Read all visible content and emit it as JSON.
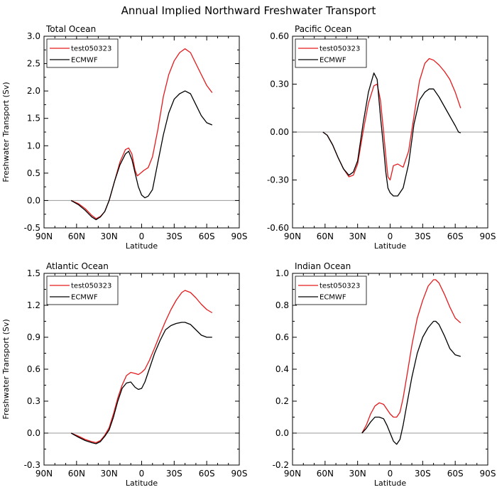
{
  "figure_title": "Annual Implied Northward Freshwater Transport",
  "colors": {
    "series1": "#e41a1c",
    "series2": "#000000",
    "zero_line": "#999999",
    "axis": "#000000"
  },
  "chart_data": [
    {
      "type": "line",
      "title": "Total Ocean",
      "xlabel": "Latitude",
      "ylabel": "Freshwater Transport (Sv)",
      "xlim": [
        -90,
        90
      ],
      "xticks": [
        "90N",
        "60N",
        "30N",
        "0",
        "30S",
        "60S",
        "90S"
      ],
      "ylim": [
        -0.5,
        3.0
      ],
      "yticks": [
        "-0.5",
        "0.0",
        "0.5",
        "1.0",
        "1.5",
        "2.0",
        "2.5",
        "3.0"
      ],
      "series": [
        {
          "name": "test050323",
          "x": [
            -65,
            -58,
            -52,
            -46,
            -42,
            -38,
            -34,
            -30,
            -25,
            -20,
            -15,
            -12,
            -9,
            -6,
            -4,
            -1,
            2,
            6,
            10,
            15,
            20,
            25,
            30,
            35,
            40,
            45,
            50,
            55,
            60,
            65
          ],
          "y": [
            0.0,
            -0.06,
            -0.15,
            -0.27,
            -0.33,
            -0.29,
            -0.2,
            0.0,
            0.35,
            0.7,
            0.93,
            0.96,
            0.85,
            0.55,
            0.45,
            0.5,
            0.55,
            0.6,
            0.8,
            1.3,
            1.9,
            2.3,
            2.55,
            2.7,
            2.77,
            2.7,
            2.5,
            2.3,
            2.1,
            1.97
          ]
        },
        {
          "name": "ECMWF",
          "x": [
            -65,
            -58,
            -52,
            -46,
            -42,
            -38,
            -34,
            -30,
            -25,
            -20,
            -15,
            -12,
            -9,
            -6,
            -3,
            0,
            3,
            6,
            10,
            15,
            20,
            25,
            30,
            35,
            40,
            45,
            50,
            55,
            60,
            65
          ],
          "y": [
            0.0,
            -0.08,
            -0.18,
            -0.3,
            -0.35,
            -0.3,
            -0.2,
            0.0,
            0.35,
            0.65,
            0.85,
            0.9,
            0.75,
            0.5,
            0.25,
            0.1,
            0.05,
            0.08,
            0.2,
            0.7,
            1.2,
            1.6,
            1.85,
            1.95,
            2.0,
            1.95,
            1.75,
            1.55,
            1.42,
            1.38
          ]
        }
      ]
    },
    {
      "type": "line",
      "title": "Pacific Ocean",
      "xlabel": "Latitude",
      "ylabel": "",
      "xlim": [
        -90,
        90
      ],
      "xticks": [
        "90N",
        "60N",
        "30N",
        "0",
        "30S",
        "60S",
        "90S"
      ],
      "ylim": [
        -0.6,
        0.6
      ],
      "yticks": [
        "-0.60",
        "-0.30",
        "0.00",
        "0.30",
        "0.60"
      ],
      "series": [
        {
          "name": "test050323",
          "x": [
            -62,
            -58,
            -53,
            -48,
            -43,
            -38,
            -34,
            -30,
            -25,
            -20,
            -15,
            -12,
            -9,
            -6,
            -4,
            -2,
            0,
            3,
            7,
            12,
            17,
            22,
            27,
            32,
            36,
            40,
            45,
            50,
            55,
            60,
            65
          ],
          "y": [
            0.0,
            -0.02,
            -0.08,
            -0.16,
            -0.23,
            -0.28,
            -0.27,
            -0.2,
            0.0,
            0.18,
            0.29,
            0.3,
            0.2,
            0.0,
            -0.15,
            -0.28,
            -0.3,
            -0.21,
            -0.2,
            -0.22,
            -0.12,
            0.1,
            0.32,
            0.43,
            0.46,
            0.45,
            0.42,
            0.38,
            0.33,
            0.25,
            0.15
          ]
        },
        {
          "name": "ECMWF",
          "x": [
            -62,
            -58,
            -53,
            -48,
            -43,
            -38,
            -34,
            -30,
            -25,
            -20,
            -15,
            -12,
            -9,
            -6,
            -4,
            -2,
            0,
            3,
            7,
            12,
            17,
            22,
            27,
            32,
            36,
            40,
            45,
            50,
            55,
            60,
            63,
            65
          ],
          "y": [
            0.0,
            -0.02,
            -0.08,
            -0.16,
            -0.23,
            -0.27,
            -0.25,
            -0.18,
            0.05,
            0.25,
            0.37,
            0.33,
            0.1,
            -0.1,
            -0.25,
            -0.35,
            -0.38,
            -0.4,
            -0.4,
            -0.35,
            -0.2,
            0.05,
            0.2,
            0.25,
            0.27,
            0.27,
            0.22,
            0.16,
            0.1,
            0.04,
            0.0,
            -0.005
          ]
        }
      ]
    },
    {
      "type": "line",
      "title": "Atlantic Ocean",
      "xlabel": "Latitude",
      "ylabel": "Freshwater Transport (Sv)",
      "xlim": [
        -90,
        90
      ],
      "xticks": [
        "90N",
        "60N",
        "30N",
        "0",
        "30S",
        "60S",
        "90S"
      ],
      "ylim": [
        -0.3,
        1.5
      ],
      "yticks": [
        "-0.3",
        "0.0",
        "0.3",
        "0.6",
        "0.9",
        "1.2",
        "1.5"
      ],
      "series": [
        {
          "name": "test050323",
          "x": [
            -65,
            -58,
            -52,
            -46,
            -42,
            -38,
            -34,
            -30,
            -26,
            -22,
            -18,
            -14,
            -10,
            -6,
            -3,
            0,
            3,
            7,
            12,
            17,
            22,
            27,
            32,
            37,
            40,
            45,
            50,
            55,
            60,
            65
          ],
          "y": [
            0.0,
            -0.03,
            -0.06,
            -0.08,
            -0.09,
            -0.07,
            -0.02,
            0.05,
            0.18,
            0.33,
            0.45,
            0.54,
            0.57,
            0.56,
            0.55,
            0.57,
            0.6,
            0.68,
            0.8,
            0.93,
            1.05,
            1.16,
            1.25,
            1.32,
            1.34,
            1.32,
            1.27,
            1.21,
            1.16,
            1.13
          ]
        },
        {
          "name": "ECMWF",
          "x": [
            -65,
            -58,
            -52,
            -46,
            -42,
            -38,
            -34,
            -30,
            -26,
            -22,
            -18,
            -14,
            -10,
            -6,
            -3,
            0,
            3,
            7,
            12,
            17,
            22,
            27,
            32,
            37,
            40,
            45,
            50,
            55,
            60,
            65
          ],
          "y": [
            0.0,
            -0.04,
            -0.07,
            -0.09,
            -0.1,
            -0.08,
            -0.03,
            0.03,
            0.15,
            0.3,
            0.42,
            0.47,
            0.48,
            0.43,
            0.41,
            0.42,
            0.48,
            0.6,
            0.75,
            0.87,
            0.97,
            1.01,
            1.03,
            1.04,
            1.04,
            1.02,
            0.97,
            0.92,
            0.9,
            0.9
          ]
        }
      ]
    },
    {
      "type": "line",
      "title": "Indian Ocean",
      "xlabel": "Latitude",
      "ylabel": "",
      "xlim": [
        -90,
        90
      ],
      "xticks": [
        "90N",
        "60N",
        "30N",
        "0",
        "30S",
        "60S",
        "90S"
      ],
      "ylim": [
        -0.2,
        1.0
      ],
      "yticks": [
        "-0.2",
        "0.0",
        "0.2",
        "0.4",
        "0.6",
        "0.8",
        "1.0"
      ],
      "series": [
        {
          "name": "test050323",
          "x": [
            -26,
            -22,
            -18,
            -14,
            -10,
            -6,
            -3,
            0,
            3,
            6,
            9,
            12,
            16,
            20,
            25,
            30,
            35,
            40,
            42,
            45,
            50,
            55,
            60,
            65
          ],
          "y": [
            0.0,
            0.05,
            0.12,
            0.17,
            0.19,
            0.18,
            0.15,
            0.12,
            0.1,
            0.1,
            0.13,
            0.22,
            0.38,
            0.55,
            0.72,
            0.83,
            0.92,
            0.96,
            0.96,
            0.94,
            0.87,
            0.79,
            0.72,
            0.69
          ]
        },
        {
          "name": "ECMWF",
          "x": [
            -26,
            -22,
            -18,
            -14,
            -10,
            -6,
            -3,
            0,
            3,
            6,
            9,
            12,
            16,
            20,
            25,
            30,
            35,
            40,
            42,
            45,
            50,
            55,
            60,
            65
          ],
          "y": [
            0.0,
            0.03,
            0.07,
            0.1,
            0.1,
            0.09,
            0.05,
            0.0,
            -0.05,
            -0.07,
            -0.04,
            0.05,
            0.2,
            0.35,
            0.5,
            0.6,
            0.66,
            0.7,
            0.7,
            0.68,
            0.61,
            0.53,
            0.49,
            0.48
          ]
        }
      ]
    }
  ]
}
